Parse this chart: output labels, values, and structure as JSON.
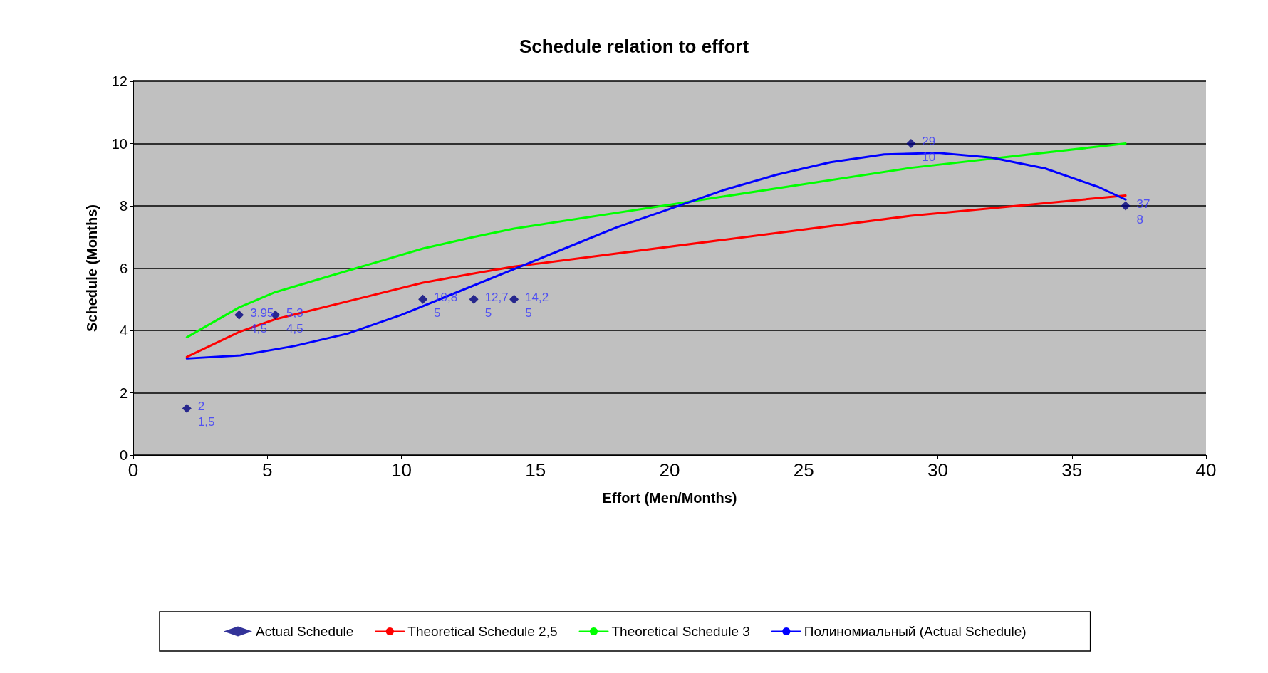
{
  "chart_data": {
    "type": "scatter",
    "title": "Schedule relation to effort",
    "xlabel": "Effort (Men/Months)",
    "ylabel": "Schedule (Months)",
    "xlim": [
      0,
      40
    ],
    "xticks": [
      0,
      5,
      10,
      15,
      20,
      25,
      30,
      35,
      40
    ],
    "ylim": [
      0,
      12
    ],
    "yticks": [
      0,
      2,
      4,
      6,
      8,
      10,
      12
    ],
    "grid": "y",
    "legend": "bottom",
    "series": [
      {
        "name": "Actual Schedule",
        "marker": "diamond",
        "color": "#000080",
        "x": [
          2,
          3.95,
          5.3,
          10.8,
          12.7,
          14.2,
          29,
          37
        ],
        "values": [
          1.5,
          4.5,
          4.5,
          5,
          5,
          5,
          10,
          8
        ],
        "value_labels": [
          "2\n1,5",
          "3,95\n4,5",
          "5,3\n4,5",
          "10,8\n5",
          "12,7\n5",
          "14,2\n5",
          "29\n10",
          "37\n8"
        ]
      },
      {
        "name": "Theoretical Schedule 2,5",
        "type": "line",
        "marker": "none",
        "color": "#ff0000",
        "x": [
          2,
          3.95,
          5.3,
          10.8,
          12.7,
          14.2,
          29,
          37
        ],
        "values": [
          3.15,
          3.95,
          4.36,
          5.53,
          5.83,
          6.05,
          7.68,
          8.33
        ]
      },
      {
        "name": "Theoretical Schedule 3",
        "type": "line",
        "marker": "none",
        "color": "#00ff00",
        "x": [
          2,
          3.95,
          5.3,
          10.8,
          12.7,
          14.2,
          29,
          37
        ],
        "values": [
          3.78,
          4.74,
          5.23,
          6.63,
          7.0,
          7.27,
          9.22,
          10.0
        ]
      },
      {
        "name": "Полиномиальный (Actual Schedule)",
        "type": "line",
        "marker": "none",
        "color": "#0000ff",
        "x": [
          2,
          4,
          6,
          8,
          10,
          12,
          14,
          16,
          18,
          20,
          22,
          24,
          26,
          28,
          30,
          32,
          34,
          36,
          37
        ],
        "values": [
          3.1,
          3.2,
          3.5,
          3.9,
          4.5,
          5.2,
          5.9,
          6.6,
          7.3,
          7.9,
          8.5,
          9.0,
          9.4,
          9.65,
          9.7,
          9.55,
          9.2,
          8.6,
          8.2
        ]
      }
    ]
  }
}
